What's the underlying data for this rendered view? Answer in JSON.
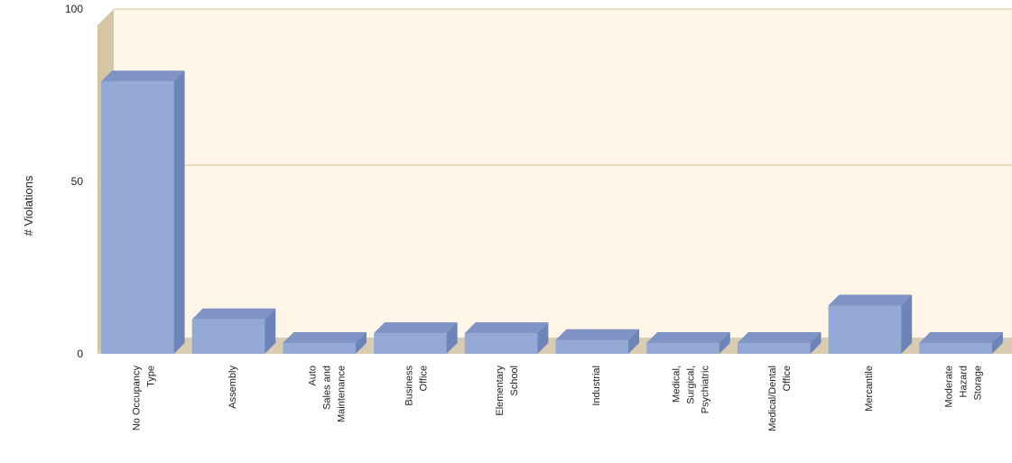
{
  "chart_data": {
    "type": "bar",
    "style": "3d",
    "categories": [
      [
        "No Occupancy",
        "Type"
      ],
      [
        "Assembly"
      ],
      [
        "Auto",
        "Sales and",
        "Maintenance"
      ],
      [
        "Business",
        "Office"
      ],
      [
        "Elementary",
        "School"
      ],
      [
        "Industrial"
      ],
      [
        "Medical,",
        "Surgical,",
        "Psychiatric"
      ],
      [
        "Medical/Dental",
        "Office"
      ],
      [
        "Mercantile"
      ],
      [
        "Moderate",
        "Hazard",
        "Storage"
      ]
    ],
    "values": [
      79,
      10,
      3,
      6,
      6,
      4,
      3,
      1,
      14,
      3
    ],
    "title": "",
    "xlabel": "",
    "ylabel": "# Violations",
    "ylim": [
      0,
      100
    ],
    "yticks": [
      "0",
      "50",
      "100"
    ],
    "grid": true,
    "colors": {
      "bar_front": "#94a9d6",
      "bar_side": "#6d84b8",
      "bar_top": "#7f94c4",
      "plot_bg": "#fff6e7",
      "wall": "#d6c6a6",
      "floor": "#d9ccb0",
      "gridline": "#d2c091"
    }
  }
}
